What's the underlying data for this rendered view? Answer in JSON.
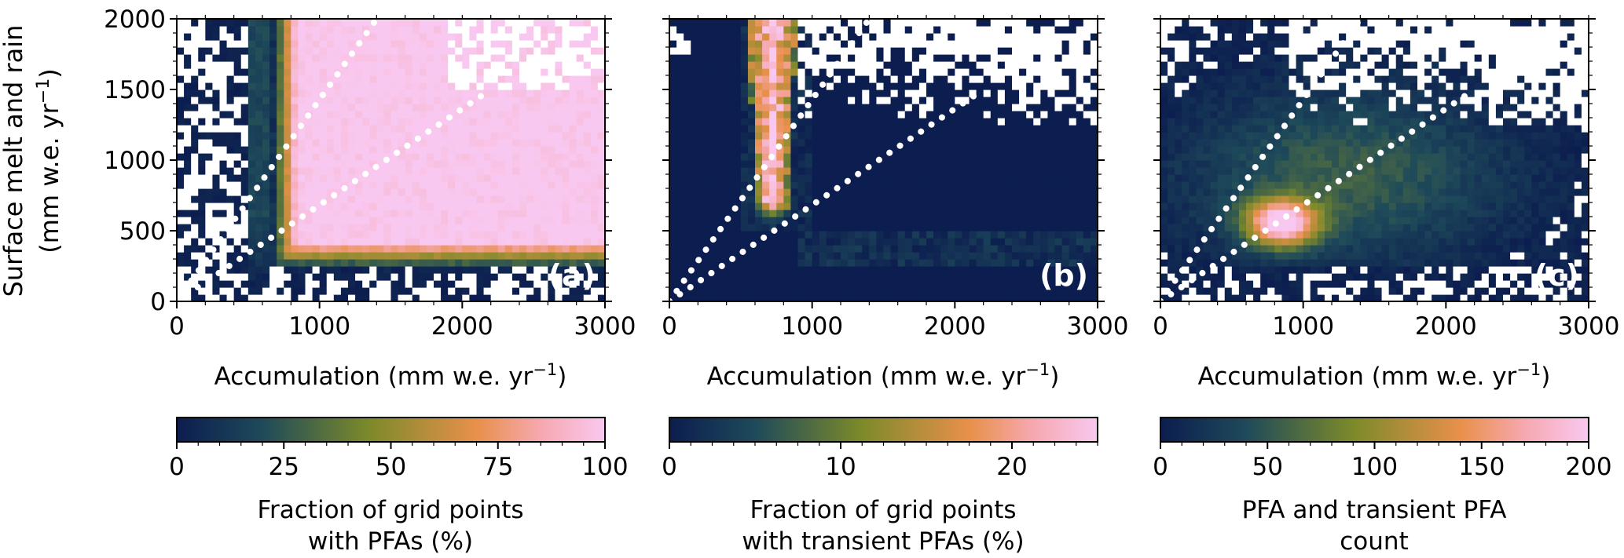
{
  "figure": {
    "ylabel_line1": "Surface melt and rain",
    "ylabel_line2_prefix": "(mm w.e. yr",
    "ylabel_line2_exp": "−1",
    "ylabel_line2_suffix": ")"
  },
  "chart_data": [
    {
      "type": "heatmap",
      "panel_label": "(a)",
      "xlabel_prefix": "Accumulation (mm w.e. yr",
      "xlabel_exp": "−1",
      "xlabel_suffix": ")",
      "xlim": [
        0,
        3000
      ],
      "ylim": [
        0,
        2000
      ],
      "xticks": [
        "0",
        "1000",
        "2000",
        "3000"
      ],
      "yticks": [
        "0",
        "500",
        "1000",
        "1500",
        "2000"
      ],
      "reference_lines": [
        {
          "style": "dotted",
          "color": "#ffffff",
          "from": [
            0,
            0
          ],
          "to": [
            1400,
            2000
          ]
        },
        {
          "style": "dotted",
          "color": "#ffffff",
          "from": [
            0,
            0
          ],
          "to": [
            2200,
            1500
          ]
        }
      ],
      "colorbar": {
        "range": [
          0,
          100
        ],
        "ticks": [
          "0",
          "25",
          "50",
          "75",
          "100"
        ],
        "label_line1": "Fraction of grid points",
        "label_line2": "with PFAs (%)"
      },
      "colormap": [
        "#0c1d4f",
        "#1e4a5a",
        "#7d8a2a",
        "#e8904a",
        "#f6a8b0",
        "#f9c8f0"
      ],
      "data_description_values": {
        "onset_accumulation": 780,
        "onset_melt": 300,
        "saturated_region_value": 100
      }
    },
    {
      "type": "heatmap",
      "panel_label": "(b)",
      "xlabel_prefix": "Accumulation (mm w.e. yr",
      "xlabel_exp": "−1",
      "xlabel_suffix": ")",
      "xlim": [
        0,
        3000
      ],
      "ylim": [
        0,
        2000
      ],
      "xticks": [
        "0",
        "1000",
        "2000",
        "3000"
      ],
      "yticks": [
        "0",
        "500",
        "1000",
        "1500",
        "2000"
      ],
      "reference_lines": [
        {
          "style": "dotted",
          "color": "#ffffff",
          "from": [
            0,
            0
          ],
          "to": [
            1400,
            2000
          ]
        },
        {
          "style": "dotted",
          "color": "#ffffff",
          "from": [
            0,
            0
          ],
          "to": [
            2200,
            1500
          ]
        }
      ],
      "colorbar": {
        "range": [
          0,
          25
        ],
        "ticks": [
          "0",
          "10",
          "20"
        ],
        "label_line1": "Fraction of grid points",
        "label_line2": "with transient PFAs (%)"
      },
      "colormap": [
        "#0c1d4f",
        "#1e4a5a",
        "#7d8a2a",
        "#e8904a",
        "#f6a8b0",
        "#f9c8f0"
      ],
      "data_description_values": {
        "plume_center_accumulation": 720,
        "plume_bottom_melt": 700,
        "plume_peak_value": 25
      }
    },
    {
      "type": "heatmap",
      "panel_label": "(c)",
      "xlabel_prefix": "Accumulation (mm w.e. yr",
      "xlabel_exp": "−1",
      "xlabel_suffix": ")",
      "xlim": [
        0,
        3000
      ],
      "ylim": [
        0,
        2000
      ],
      "xticks": [
        "0",
        "1000",
        "2000",
        "3000"
      ],
      "yticks": [
        "0",
        "500",
        "1000",
        "1500",
        "2000"
      ],
      "reference_lines": [
        {
          "style": "dotted",
          "color": "#ffffff",
          "from": [
            0,
            0
          ],
          "to": [
            1400,
            2000
          ]
        },
        {
          "style": "dotted",
          "color": "#ffffff",
          "from": [
            0,
            0
          ],
          "to": [
            2200,
            1500
          ]
        }
      ],
      "colorbar": {
        "range": [
          0,
          200
        ],
        "ticks": [
          "0",
          "50",
          "100",
          "150",
          "200"
        ],
        "label_line1": "PFA and transient PFA",
        "label_line2": "count"
      },
      "colormap": [
        "#0c1d4f",
        "#1e4a5a",
        "#7d8a2a",
        "#e8904a",
        "#f6a8b0",
        "#f9c8f0"
      ],
      "data_description_values": {
        "hotspot_accumulation": 850,
        "hotspot_melt": 560,
        "hotspot_peak_value": 200
      }
    }
  ]
}
